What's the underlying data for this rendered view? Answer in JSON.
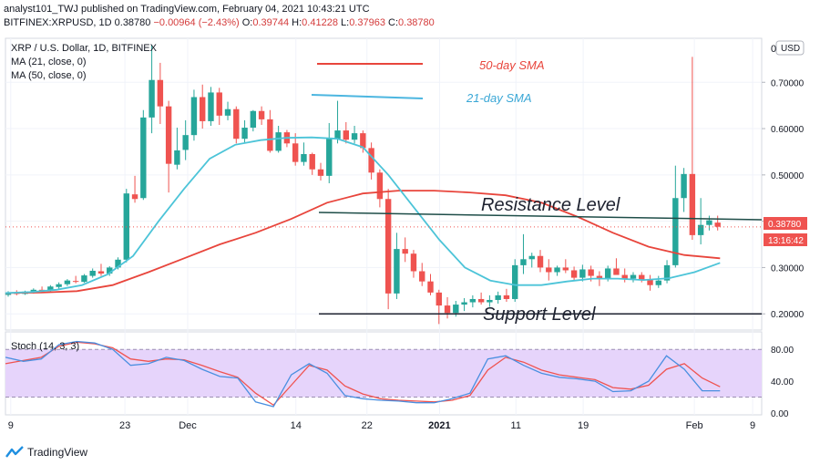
{
  "header": {
    "line1": "analyst101_TWJ published on TradingView.com, February 04, 2021 10:43:21 UTC",
    "symbol": "BITFINEX:XRPUSD, 1D",
    "price": "0.38780",
    "change": "−0.00964 (−2.43%)",
    "o_label": "O:",
    "o_value": "0.39744",
    "h_label": "H:",
    "h_value": "0.41228",
    "l_label": "L:",
    "l_value": "0.37963",
    "c_label": "C:",
    "c_value": "0.38780"
  },
  "legend": {
    "title": "XRP / U.S. Dollar, 1D, BITFINEX",
    "ma1": "MA (21, close, 0)",
    "ma2": "MA (50, close, 0)"
  },
  "currency_button": "USD",
  "price_tag": "0.38780",
  "countdown": "13:16:42",
  "annotations": {
    "sma50": "50-day SMA",
    "sma21": "21-day SMA",
    "resistance": "Resistance Level",
    "support": "Support Level"
  },
  "stoch": {
    "label": "Stoch (14, 3, 3)",
    "upper_band": 80,
    "lower_band": 20
  },
  "brand": "TradingView",
  "colors": {
    "up": "#26a69a",
    "down": "#ef5350",
    "sma50": "#e8453c",
    "sma21": "#4cc4d8",
    "stoch_k": "#4a8fe0",
    "stoch_d": "#ef5350",
    "stoch_band": "#e6d4fb"
  },
  "chart_data": {
    "type": "candlestick",
    "title": "XRP / U.S. Dollar, 1D, BITFINEX",
    "y_ticks": [
      "0.70000",
      "0.60000",
      "0.50000",
      "0.40000",
      "0.30000",
      "0.20000"
    ],
    "y_top_label": "0",
    "x_ticks": [
      "9",
      "23",
      "Dec",
      "14",
      "22",
      "2021",
      "11",
      "19",
      "Feb",
      "9"
    ],
    "ylim": [
      0.165,
      0.795
    ],
    "current_price": 0.3878,
    "resistance_level": 0.4,
    "support_level": 0.2,
    "sma21": [
      0.245,
      0.247,
      0.252,
      0.262,
      0.285,
      0.325,
      0.4,
      0.47,
      0.535,
      0.565,
      0.575,
      0.58,
      0.581,
      0.578,
      0.56,
      0.5,
      0.43,
      0.36,
      0.3,
      0.272,
      0.262,
      0.262,
      0.27,
      0.276,
      0.276,
      0.273,
      0.277,
      0.29,
      0.31
    ],
    "sma50": [
      0.245,
      0.246,
      0.249,
      0.262,
      0.29,
      0.32,
      0.35,
      0.375,
      0.405,
      0.44,
      0.46,
      0.466,
      0.466,
      0.462,
      0.456,
      0.44,
      0.41,
      0.375,
      0.345,
      0.327,
      0.32
    ],
    "stoch_k": [
      70,
      65,
      68,
      86,
      90,
      88,
      80,
      60,
      62,
      70,
      66,
      55,
      46,
      44,
      14,
      8,
      48,
      62,
      50,
      22,
      18,
      16,
      15,
      13,
      13,
      18,
      25,
      68,
      72,
      60,
      50,
      45,
      43,
      40,
      27,
      28,
      40,
      72,
      55,
      28,
      28
    ],
    "stoch_d": [
      62,
      66,
      70,
      84,
      89,
      87,
      82,
      68,
      65,
      68,
      67,
      60,
      52,
      45,
      25,
      10,
      35,
      60,
      54,
      34,
      24,
      18,
      16,
      15,
      14,
      16,
      22,
      54,
      70,
      64,
      54,
      48,
      45,
      42,
      32,
      30,
      35,
      55,
      62,
      44,
      33
    ],
    "candles": [
      {
        "o": 0.241,
        "h": 0.249,
        "l": 0.237,
        "c": 0.246
      },
      {
        "o": 0.246,
        "h": 0.251,
        "l": 0.24,
        "c": 0.243
      },
      {
        "o": 0.243,
        "h": 0.25,
        "l": 0.241,
        "c": 0.248
      },
      {
        "o": 0.247,
        "h": 0.255,
        "l": 0.244,
        "c": 0.252
      },
      {
        "o": 0.252,
        "h": 0.259,
        "l": 0.248,
        "c": 0.25
      },
      {
        "o": 0.25,
        "h": 0.262,
        "l": 0.248,
        "c": 0.259
      },
      {
        "o": 0.258,
        "h": 0.268,
        "l": 0.254,
        "c": 0.264
      },
      {
        "o": 0.264,
        "h": 0.275,
        "l": 0.26,
        "c": 0.272
      },
      {
        "o": 0.271,
        "h": 0.282,
        "l": 0.266,
        "c": 0.269
      },
      {
        "o": 0.269,
        "h": 0.286,
        "l": 0.267,
        "c": 0.283
      },
      {
        "o": 0.282,
        "h": 0.298,
        "l": 0.278,
        "c": 0.293
      },
      {
        "o": 0.292,
        "h": 0.308,
        "l": 0.282,
        "c": 0.287
      },
      {
        "o": 0.287,
        "h": 0.303,
        "l": 0.282,
        "c": 0.3
      },
      {
        "o": 0.3,
        "h": 0.322,
        "l": 0.296,
        "c": 0.317
      },
      {
        "o": 0.317,
        "h": 0.47,
        "l": 0.311,
        "c": 0.46
      },
      {
        "o": 0.458,
        "h": 0.498,
        "l": 0.44,
        "c": 0.448
      },
      {
        "o": 0.45,
        "h": 0.64,
        "l": 0.446,
        "c": 0.624
      },
      {
        "o": 0.624,
        "h": 0.781,
        "l": 0.59,
        "c": 0.705
      },
      {
        "o": 0.705,
        "h": 0.742,
        "l": 0.61,
        "c": 0.648
      },
      {
        "o": 0.648,
        "h": 0.66,
        "l": 0.462,
        "c": 0.524
      },
      {
        "o": 0.522,
        "h": 0.602,
        "l": 0.512,
        "c": 0.553
      },
      {
        "o": 0.554,
        "h": 0.618,
        "l": 0.532,
        "c": 0.586
      },
      {
        "o": 0.586,
        "h": 0.684,
        "l": 0.574,
        "c": 0.668
      },
      {
        "o": 0.668,
        "h": 0.695,
        "l": 0.6,
        "c": 0.616
      },
      {
        "o": 0.616,
        "h": 0.69,
        "l": 0.606,
        "c": 0.678
      },
      {
        "o": 0.678,
        "h": 0.688,
        "l": 0.608,
        "c": 0.628
      },
      {
        "o": 0.628,
        "h": 0.658,
        "l": 0.618,
        "c": 0.642
      },
      {
        "o": 0.642,
        "h": 0.648,
        "l": 0.568,
        "c": 0.578
      },
      {
        "o": 0.578,
        "h": 0.618,
        "l": 0.568,
        "c": 0.602
      },
      {
        "o": 0.602,
        "h": 0.64,
        "l": 0.594,
        "c": 0.638
      },
      {
        "o": 0.638,
        "h": 0.648,
        "l": 0.608,
        "c": 0.62
      },
      {
        "o": 0.62,
        "h": 0.64,
        "l": 0.548,
        "c": 0.552
      },
      {
        "o": 0.552,
        "h": 0.606,
        "l": 0.548,
        "c": 0.592
      },
      {
        "o": 0.592,
        "h": 0.597,
        "l": 0.56,
        "c": 0.568
      },
      {
        "o": 0.568,
        "h": 0.59,
        "l": 0.52,
        "c": 0.528
      },
      {
        "o": 0.528,
        "h": 0.57,
        "l": 0.52,
        "c": 0.545
      },
      {
        "o": 0.545,
        "h": 0.548,
        "l": 0.5,
        "c": 0.512
      },
      {
        "o": 0.512,
        "h": 0.526,
        "l": 0.488,
        "c": 0.498
      },
      {
        "o": 0.498,
        "h": 0.612,
        "l": 0.482,
        "c": 0.578
      },
      {
        "o": 0.578,
        "h": 0.66,
        "l": 0.568,
        "c": 0.596
      },
      {
        "o": 0.596,
        "h": 0.614,
        "l": 0.568,
        "c": 0.576
      },
      {
        "o": 0.576,
        "h": 0.606,
        "l": 0.568,
        "c": 0.59
      },
      {
        "o": 0.59,
        "h": 0.596,
        "l": 0.548,
        "c": 0.558
      },
      {
        "o": 0.558,
        "h": 0.57,
        "l": 0.49,
        "c": 0.505
      },
      {
        "o": 0.505,
        "h": 0.512,
        "l": 0.43,
        "c": 0.448
      },
      {
        "o": 0.448,
        "h": 0.47,
        "l": 0.21,
        "c": 0.244
      },
      {
        "o": 0.244,
        "h": 0.375,
        "l": 0.232,
        "c": 0.34
      },
      {
        "o": 0.34,
        "h": 0.365,
        "l": 0.312,
        "c": 0.33
      },
      {
        "o": 0.33,
        "h": 0.338,
        "l": 0.278,
        "c": 0.292
      },
      {
        "o": 0.292,
        "h": 0.31,
        "l": 0.26,
        "c": 0.27
      },
      {
        "o": 0.27,
        "h": 0.286,
        "l": 0.24,
        "c": 0.246
      },
      {
        "o": 0.246,
        "h": 0.252,
        "l": 0.178,
        "c": 0.218
      },
      {
        "o": 0.218,
        "h": 0.236,
        "l": 0.19,
        "c": 0.202
      },
      {
        "o": 0.202,
        "h": 0.228,
        "l": 0.194,
        "c": 0.22
      },
      {
        "o": 0.22,
        "h": 0.234,
        "l": 0.206,
        "c": 0.225
      },
      {
        "o": 0.225,
        "h": 0.24,
        "l": 0.214,
        "c": 0.232
      },
      {
        "o": 0.232,
        "h": 0.246,
        "l": 0.22,
        "c": 0.225
      },
      {
        "o": 0.225,
        "h": 0.24,
        "l": 0.215,
        "c": 0.23
      },
      {
        "o": 0.23,
        "h": 0.248,
        "l": 0.222,
        "c": 0.24
      },
      {
        "o": 0.24,
        "h": 0.254,
        "l": 0.226,
        "c": 0.232
      },
      {
        "o": 0.232,
        "h": 0.318,
        "l": 0.226,
        "c": 0.305
      },
      {
        "o": 0.305,
        "h": 0.372,
        "l": 0.286,
        "c": 0.318
      },
      {
        "o": 0.318,
        "h": 0.332,
        "l": 0.3,
        "c": 0.325
      },
      {
        "o": 0.325,
        "h": 0.338,
        "l": 0.29,
        "c": 0.3
      },
      {
        "o": 0.3,
        "h": 0.318,
        "l": 0.272,
        "c": 0.29
      },
      {
        "o": 0.29,
        "h": 0.304,
        "l": 0.282,
        "c": 0.3
      },
      {
        "o": 0.3,
        "h": 0.318,
        "l": 0.288,
        "c": 0.294
      },
      {
        "o": 0.294,
        "h": 0.302,
        "l": 0.272,
        "c": 0.278
      },
      {
        "o": 0.278,
        "h": 0.306,
        "l": 0.27,
        "c": 0.296
      },
      {
        "o": 0.296,
        "h": 0.304,
        "l": 0.27,
        "c": 0.282
      },
      {
        "o": 0.282,
        "h": 0.292,
        "l": 0.26,
        "c": 0.276
      },
      {
        "o": 0.276,
        "h": 0.304,
        "l": 0.27,
        "c": 0.298
      },
      {
        "o": 0.298,
        "h": 0.32,
        "l": 0.288,
        "c": 0.284
      },
      {
        "o": 0.284,
        "h": 0.298,
        "l": 0.268,
        "c": 0.276
      },
      {
        "o": 0.276,
        "h": 0.29,
        "l": 0.268,
        "c": 0.284
      },
      {
        "o": 0.284,
        "h": 0.29,
        "l": 0.268,
        "c": 0.274
      },
      {
        "o": 0.274,
        "h": 0.284,
        "l": 0.25,
        "c": 0.262
      },
      {
        "o": 0.262,
        "h": 0.282,
        "l": 0.256,
        "c": 0.272
      },
      {
        "o": 0.272,
        "h": 0.316,
        "l": 0.266,
        "c": 0.305
      },
      {
        "o": 0.305,
        "h": 0.52,
        "l": 0.3,
        "c": 0.45
      },
      {
        "o": 0.45,
        "h": 0.515,
        "l": 0.42,
        "c": 0.502
      },
      {
        "o": 0.502,
        "h": 0.755,
        "l": 0.36,
        "c": 0.37
      },
      {
        "o": 0.37,
        "h": 0.45,
        "l": 0.35,
        "c": 0.392
      },
      {
        "o": 0.392,
        "h": 0.412,
        "l": 0.38,
        "c": 0.402
      },
      {
        "o": 0.397,
        "h": 0.412,
        "l": 0.38,
        "c": 0.388
      }
    ]
  }
}
